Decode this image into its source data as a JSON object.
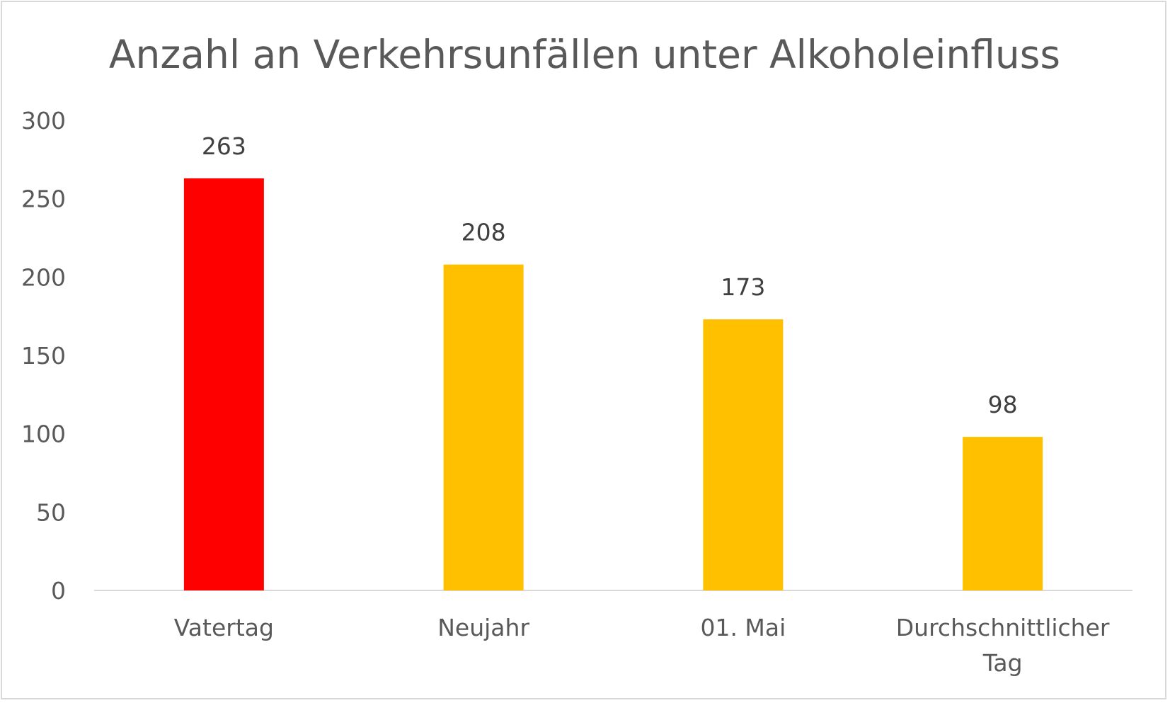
{
  "chart_data": {
    "type": "bar",
    "title": "Anzahl an Verkehrsunfällen unter Alkoholeinfluss",
    "xlabel": "",
    "ylabel": "",
    "categories": [
      "Vatertag",
      "Neujahr",
      "01. Mai",
      "Durchschnittlicher Tag"
    ],
    "category_lines": [
      [
        "Vatertag"
      ],
      [
        "Neujahr"
      ],
      [
        "01. Mai"
      ],
      [
        "Durchschnittlicher",
        "Tag"
      ]
    ],
    "values": [
      263,
      208,
      173,
      98
    ],
    "data_labels": [
      "263",
      "208",
      "173",
      "98"
    ],
    "bar_colors": [
      "#ff0000",
      "#ffc000",
      "#ffc000",
      "#ffc000"
    ],
    "ylim": [
      0,
      300
    ],
    "yticks": [
      0,
      50,
      100,
      150,
      200,
      250,
      300
    ],
    "ytick_labels": [
      "0",
      "50",
      "100",
      "150",
      "200",
      "250",
      "300"
    ],
    "grid": false,
    "legend": "none"
  },
  "colors": {
    "text": "#595959",
    "data_label": "#404040",
    "axis_line": "#d9d9d9",
    "border": "#d9d9d9",
    "background": "#ffffff"
  }
}
